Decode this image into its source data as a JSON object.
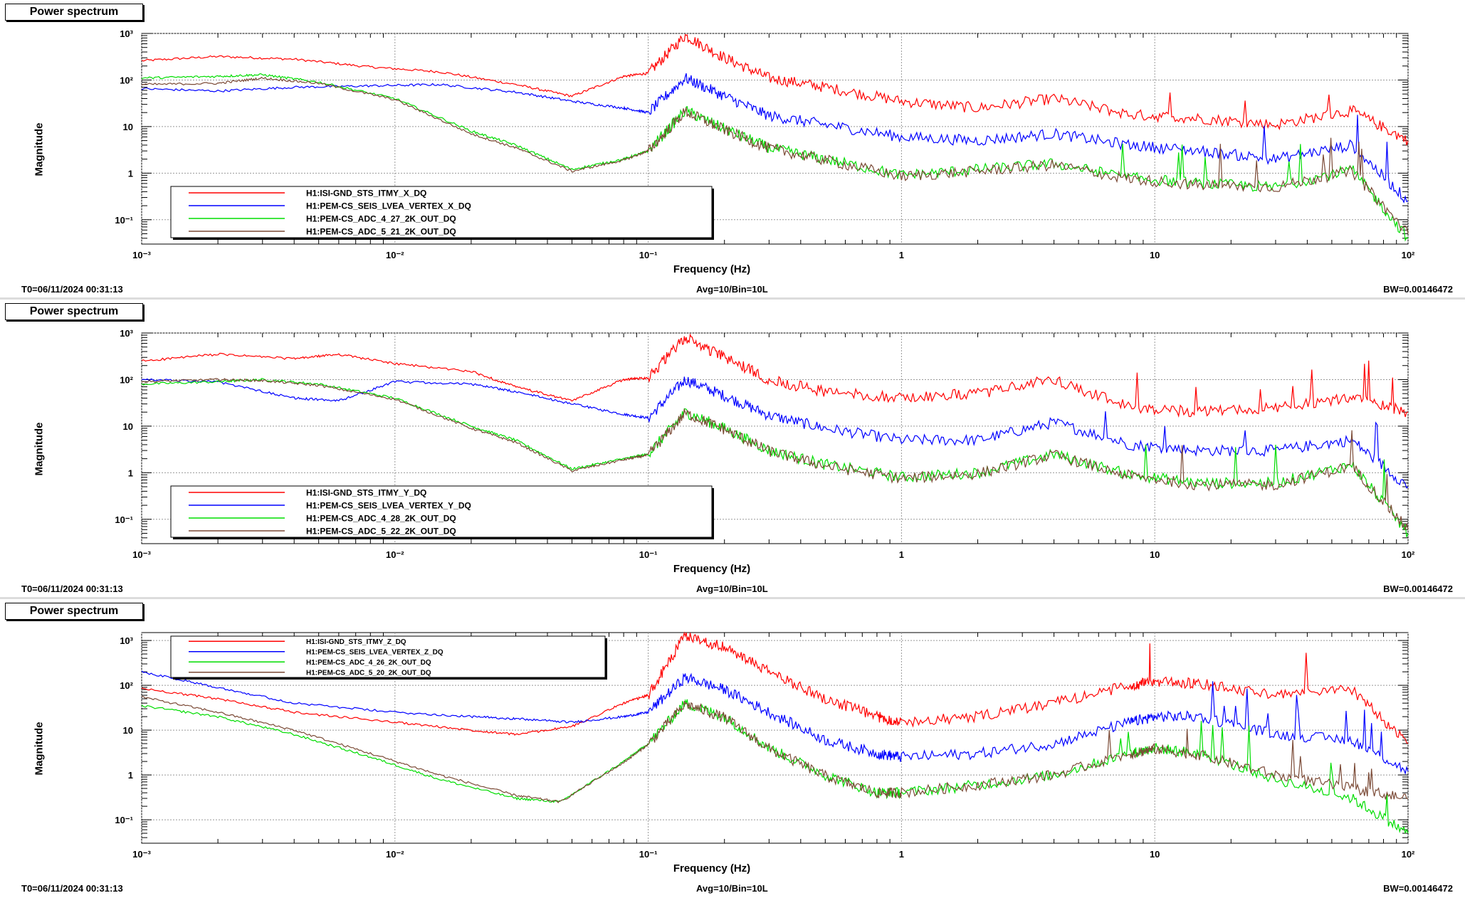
{
  "colors": {
    "red": "#ff0000",
    "blue": "#0000ff",
    "green": "#00dd00",
    "brown": "#7b4a36"
  },
  "chart_data": [
    {
      "type": "line",
      "title": "Power spectrum",
      "xlabel": "Frequency (Hz)",
      "ylabel": "Magnitude",
      "xscale": "log",
      "yscale": "log",
      "xlim": [
        0.001,
        100
      ],
      "ylim": [
        0.03,
        1000
      ],
      "x_ticks": [
        "10⁻³",
        "10⁻²",
        "10⁻¹",
        "1",
        "10",
        "10²"
      ],
      "y_ticks": [
        "10⁻¹",
        "1",
        "10",
        "10²",
        "10³"
      ],
      "legend_position": "bottom-left",
      "footer": {
        "t0": "T0=06/11/2024 00:31:13",
        "avg": "Avg=10/Bin=10L",
        "bw": "BW=0.00146472"
      },
      "series": [
        {
          "name": "H1:ISI-GND_STS_ITMY_X_DQ",
          "color": "red",
          "x": [
            0.001,
            0.002,
            0.004,
            0.008,
            0.015,
            0.03,
            0.05,
            0.08,
            0.1,
            0.14,
            0.2,
            0.3,
            0.5,
            1,
            2,
            4,
            8,
            15,
            30,
            60,
            100
          ],
          "y": [
            260,
            320,
            280,
            190,
            150,
            80,
            45,
            120,
            140,
            900,
            300,
            110,
            70,
            35,
            25,
            40,
            18,
            15,
            11,
            22,
            5
          ]
        },
        {
          "name": "H1:PEM-CS_SEIS_LVEA_VERTEX_X_DQ",
          "color": "blue",
          "x": [
            0.001,
            0.002,
            0.004,
            0.008,
            0.015,
            0.03,
            0.05,
            0.08,
            0.1,
            0.14,
            0.2,
            0.3,
            0.5,
            1,
            2,
            4,
            8,
            15,
            30,
            60,
            100
          ],
          "y": [
            65,
            58,
            70,
            75,
            80,
            55,
            35,
            25,
            20,
            110,
            45,
            17,
            11,
            6,
            5,
            7,
            4,
            3,
            2,
            4,
            0.25
          ]
        },
        {
          "name": "H1:PEM-CS_ADC_4_27_2K_OUT_DQ",
          "color": "green",
          "x": [
            0.001,
            0.002,
            0.003,
            0.005,
            0.01,
            0.02,
            0.03,
            0.05,
            0.08,
            0.1,
            0.14,
            0.2,
            0.3,
            0.5,
            1,
            2,
            4,
            8,
            15,
            30,
            60,
            100
          ],
          "y": [
            110,
            120,
            130,
            90,
            40,
            8,
            4,
            1.2,
            2,
            3,
            22,
            9,
            3.5,
            2,
            0.9,
            1.2,
            1.6,
            0.8,
            0.6,
            0.5,
            1.2,
            0.04
          ]
        },
        {
          "name": "H1:PEM-CS_ADC_5_21_2K_OUT_DQ",
          "color": "brown",
          "x": [
            0.001,
            0.002,
            0.003,
            0.005,
            0.01,
            0.02,
            0.03,
            0.05,
            0.08,
            0.1,
            0.14,
            0.2,
            0.3,
            0.5,
            1,
            2,
            4,
            8,
            15,
            30,
            60,
            100
          ],
          "y": [
            80,
            85,
            110,
            85,
            38,
            7,
            3.5,
            1.1,
            1.9,
            3,
            21,
            8.5,
            3.4,
            1.9,
            0.85,
            1.1,
            1.5,
            0.75,
            0.55,
            0.5,
            1.1,
            0.05
          ]
        }
      ]
    },
    {
      "type": "line",
      "title": "Power spectrum",
      "xlabel": "Frequency (Hz)",
      "ylabel": "Magnitude",
      "xscale": "log",
      "yscale": "log",
      "xlim": [
        0.001,
        100
      ],
      "ylim": [
        0.03,
        1000
      ],
      "x_ticks": [
        "10⁻³",
        "10⁻²",
        "10⁻¹",
        "1",
        "10",
        "10²"
      ],
      "y_ticks": [
        "10⁻¹",
        "1",
        "10",
        "10²",
        "10³"
      ],
      "legend_position": "bottom-left",
      "footer": {
        "t0": "T0=06/11/2024 00:31:13",
        "avg": "Avg=10/Bin=10L",
        "bw": "BW=0.00146472"
      },
      "series": [
        {
          "name": "H1:ISI-GND_STS_ITMY_Y_DQ",
          "color": "red",
          "x": [
            0.001,
            0.002,
            0.004,
            0.006,
            0.01,
            0.02,
            0.03,
            0.05,
            0.08,
            0.1,
            0.14,
            0.2,
            0.3,
            0.5,
            1,
            2,
            4,
            8,
            15,
            30,
            60,
            100
          ],
          "y": [
            250,
            350,
            280,
            350,
            220,
            150,
            70,
            35,
            100,
            110,
            800,
            300,
            100,
            55,
            40,
            50,
            100,
            25,
            20,
            25,
            40,
            20
          ]
        },
        {
          "name": "H1:PEM-CS_SEIS_LVEA_VERTEX_Y_DQ",
          "color": "blue",
          "x": [
            0.001,
            0.002,
            0.004,
            0.006,
            0.01,
            0.02,
            0.03,
            0.05,
            0.08,
            0.1,
            0.14,
            0.2,
            0.3,
            0.5,
            1,
            2,
            4,
            8,
            15,
            30,
            60,
            100
          ],
          "y": [
            100,
            90,
            40,
            35,
            90,
            80,
            55,
            30,
            18,
            15,
            100,
            45,
            17,
            9,
            5,
            5,
            12,
            4,
            3,
            3,
            5,
            0.5
          ]
        },
        {
          "name": "H1:PEM-CS_ADC_4_28_2K_OUT_DQ",
          "color": "green",
          "x": [
            0.001,
            0.002,
            0.003,
            0.005,
            0.01,
            0.02,
            0.03,
            0.05,
            0.08,
            0.1,
            0.14,
            0.2,
            0.3,
            0.5,
            1,
            2,
            4,
            8,
            15,
            30,
            60,
            100
          ],
          "y": [
            80,
            90,
            100,
            80,
            40,
            10,
            5,
            1.2,
            2,
            2.5,
            20,
            9,
            3,
            1.5,
            0.8,
            1,
            2.5,
            0.9,
            0.6,
            0.6,
            1.5,
            0.05
          ]
        },
        {
          "name": "H1:PEM-CS_ADC_5_22_2K_OUT_DQ",
          "color": "brown",
          "x": [
            0.001,
            0.002,
            0.003,
            0.005,
            0.01,
            0.02,
            0.03,
            0.05,
            0.08,
            0.1,
            0.14,
            0.2,
            0.3,
            0.5,
            1,
            2,
            4,
            8,
            15,
            30,
            60,
            100
          ],
          "y": [
            90,
            100,
            95,
            75,
            38,
            9,
            4.5,
            1.1,
            1.9,
            2.4,
            19,
            8.5,
            2.9,
            1.4,
            0.75,
            0.95,
            2.4,
            0.85,
            0.55,
            0.55,
            1.4,
            0.06
          ]
        }
      ]
    },
    {
      "type": "line",
      "title": "Power spectrum",
      "xlabel": "Frequency (Hz)",
      "ylabel": "Magnitude",
      "xscale": "log",
      "yscale": "log",
      "xlim": [
        0.001,
        100
      ],
      "ylim": [
        0.03,
        1500
      ],
      "x_ticks": [
        "10⁻³",
        "10⁻²",
        "10⁻¹",
        "1",
        "10",
        "10²"
      ],
      "y_ticks": [
        "10⁻¹",
        "1",
        "10",
        "10²",
        "10³"
      ],
      "legend_position": "top-left",
      "footer": {
        "t0": "T0=06/11/2024 00:31:13",
        "avg": "Avg=10/Bin=10L",
        "bw": "BW=0.00146472"
      },
      "series": [
        {
          "name": "H1:ISI-GND_STS_ITMY_Z_DQ",
          "color": "red",
          "x": [
            0.001,
            0.002,
            0.004,
            0.01,
            0.02,
            0.03,
            0.05,
            0.08,
            0.1,
            0.14,
            0.2,
            0.3,
            0.5,
            0.8,
            1,
            2,
            4,
            8,
            10,
            15,
            30,
            60,
            100
          ],
          "y": [
            85,
            50,
            25,
            15,
            10,
            8,
            12,
            40,
            60,
            1300,
            700,
            200,
            50,
            20,
            15,
            20,
            40,
            100,
            120,
            110,
            60,
            80,
            5
          ]
        },
        {
          "name": "H1:PEM-CS_SEIS_LVEA_VERTEX_Z_DQ",
          "color": "blue",
          "x": [
            0.001,
            0.002,
            0.004,
            0.01,
            0.02,
            0.03,
            0.05,
            0.08,
            0.1,
            0.14,
            0.2,
            0.3,
            0.5,
            0.8,
            1,
            2,
            4,
            8,
            10,
            15,
            30,
            60,
            100
          ],
          "y": [
            200,
            90,
            40,
            25,
            20,
            18,
            15,
            20,
            25,
            150,
            80,
            25,
            6,
            3,
            2.5,
            3,
            5,
            15,
            20,
            20,
            8,
            6,
            1.2
          ]
        },
        {
          "name": "H1:PEM-CS_ADC_4_26_2K_OUT_DQ",
          "color": "green",
          "x": [
            0.001,
            0.002,
            0.004,
            0.008,
            0.015,
            0.03,
            0.045,
            0.08,
            0.1,
            0.14,
            0.2,
            0.3,
            0.5,
            0.8,
            1,
            2,
            4,
            8,
            10,
            15,
            30,
            60,
            100
          ],
          "y": [
            35,
            20,
            8,
            2.5,
            0.8,
            0.3,
            0.25,
            2,
            5,
            40,
            20,
            4,
            1,
            0.4,
            0.4,
            0.6,
            1,
            3,
            4,
            3,
            0.8,
            0.3,
            0.05
          ]
        },
        {
          "name": "H1:PEM-CS_ADC_5_20_2K_OUT_DQ",
          "color": "brown",
          "x": [
            0.001,
            0.002,
            0.004,
            0.008,
            0.015,
            0.03,
            0.045,
            0.08,
            0.1,
            0.14,
            0.2,
            0.3,
            0.5,
            0.8,
            1,
            2,
            4,
            8,
            10,
            15,
            30,
            60,
            100
          ],
          "y": [
            55,
            25,
            10,
            3,
            1,
            0.35,
            0.25,
            1.9,
            4.8,
            38,
            19,
            3.8,
            0.95,
            0.4,
            0.4,
            0.6,
            1,
            3,
            3.8,
            2.8,
            1,
            0.5,
            0.3
          ]
        }
      ]
    }
  ]
}
